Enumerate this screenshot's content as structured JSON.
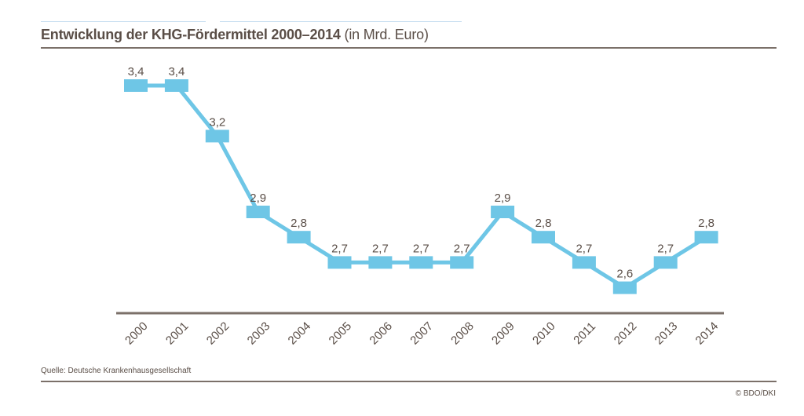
{
  "header": {
    "title_bold": "Entwicklung der KHG-Fördermittel  2000–2014",
    "title_unit": "(in Mrd. Euro)"
  },
  "footer": {
    "source": "Quelle: Deutsche Krankenhausgesellschaft",
    "copyright": "© BDO/DKI"
  },
  "colors": {
    "line": "#6ec6e6",
    "text": "#5a4e47",
    "axis": "#7b7069"
  },
  "chart_data": {
    "type": "line",
    "title": "Entwicklung der KHG-Fördermittel 2000–2014 (in Mrd. Euro)",
    "xlabel": "",
    "ylabel": "",
    "categories": [
      "2000",
      "2001",
      "2002",
      "2003",
      "2004",
      "2005",
      "2006",
      "2007",
      "2008",
      "2009",
      "2010",
      "2011",
      "2012",
      "2013",
      "2014"
    ],
    "values": [
      3.4,
      3.4,
      3.2,
      2.9,
      2.8,
      2.7,
      2.7,
      2.7,
      2.7,
      2.9,
      2.8,
      2.7,
      2.6,
      2.7,
      2.8
    ],
    "labels": [
      "3,4",
      "3,4",
      "3,2",
      "2,9",
      "2,8",
      "2,7",
      "2,7",
      "2,7",
      "2,7",
      "2,9",
      "2,8",
      "2,7",
      "2,6",
      "2,7",
      "2,8"
    ],
    "grid": false,
    "legend": "none",
    "marker": "square"
  }
}
